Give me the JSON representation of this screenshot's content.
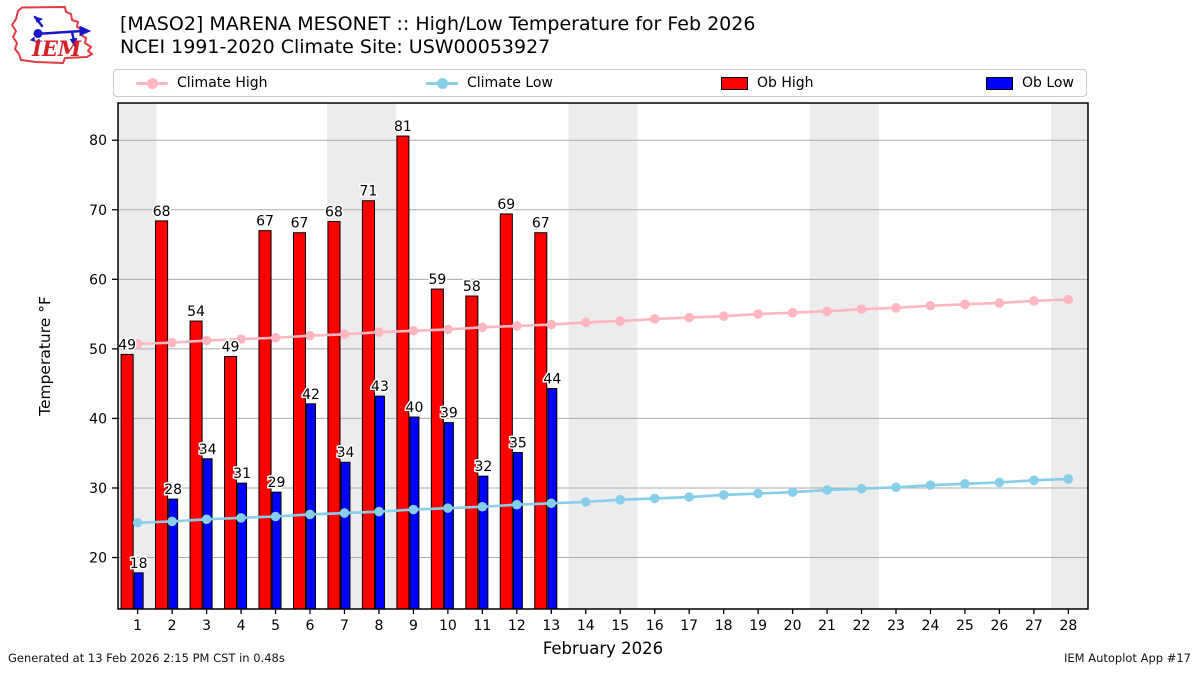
{
  "header": {
    "title_line1": "[MASO2] MARENA MESONET :: High/Low Temperature for Feb 2026",
    "title_line2": "NCEI 1991-2020 Climate Site: USW00053927",
    "logo_text": "IEM"
  },
  "footer": {
    "left": "Generated at 13 Feb 2026 2:15 PM CST in 0.48s",
    "right": "IEM Autoplot App #17"
  },
  "chart_data": {
    "type": "bar+line combo",
    "title": "[MASO2] MARENA MESONET :: High/Low Temperature for Feb 2026",
    "subtitle": "NCEI 1991-2020 Climate Site: USW00053927",
    "xlabel": "February 2026",
    "ylabel": "Temperature °F",
    "x": [
      1,
      2,
      3,
      4,
      5,
      6,
      7,
      8,
      9,
      10,
      11,
      12,
      13,
      14,
      15,
      16,
      17,
      18,
      19,
      20,
      21,
      22,
      23,
      24,
      25,
      26,
      27,
      28
    ],
    "xlim": [
      0.43,
      28.57
    ],
    "ylim": [
      12.6,
      85.35
    ],
    "yticks": [
      20,
      30,
      40,
      50,
      60,
      70,
      80
    ],
    "grid": true,
    "legend_position": "top",
    "weekend_bands": [
      [
        0.43,
        1.55
      ],
      [
        6.5,
        8.5
      ],
      [
        13.5,
        15.5
      ],
      [
        20.5,
        22.5
      ],
      [
        27.5,
        28.57
      ]
    ],
    "colors": {
      "climate_high": "#FFB6C1",
      "climate_low": "#87CEEB",
      "ob_high": "#FF0000",
      "ob_low": "#0000FF",
      "weekend_band": "#ECECEC",
      "gridline": "#ABABAB"
    },
    "series": [
      {
        "name": "Climate High",
        "type": "line",
        "swatch": "line",
        "color": "#FFB6C1",
        "values": [
          50.7,
          50.9,
          51.2,
          51.4,
          51.6,
          51.9,
          52.1,
          52.4,
          52.6,
          52.8,
          53.1,
          53.3,
          53.5,
          53.8,
          54.0,
          54.3,
          54.5,
          54.7,
          55.0,
          55.2,
          55.4,
          55.7,
          55.9,
          56.2,
          56.4,
          56.6,
          56.9,
          57.1
        ]
      },
      {
        "name": "Climate Low",
        "type": "line",
        "swatch": "line",
        "color": "#87CEEB",
        "values": [
          25.0,
          25.2,
          25.5,
          25.7,
          25.9,
          26.2,
          26.4,
          26.6,
          26.9,
          27.1,
          27.3,
          27.6,
          27.8,
          28.0,
          28.3,
          28.5,
          28.7,
          29.0,
          29.2,
          29.4,
          29.7,
          29.9,
          30.1,
          30.4,
          30.6,
          30.8,
          31.1,
          31.3
        ]
      },
      {
        "name": "Ob High",
        "type": "bar",
        "swatch": "patch",
        "color": "#FF0000",
        "days": [
          1,
          2,
          3,
          4,
          5,
          6,
          7,
          8,
          9,
          10,
          11,
          12,
          13
        ],
        "values": [
          49.2,
          68.4,
          54.0,
          48.9,
          67.0,
          66.7,
          68.3,
          71.3,
          80.6,
          58.6,
          57.6,
          69.4,
          66.7
        ],
        "labels": [
          "49",
          "68",
          "54",
          "49",
          "67",
          "67",
          "68",
          "71",
          "81",
          "59",
          "58",
          "69",
          "67"
        ]
      },
      {
        "name": "Ob Low",
        "type": "bar",
        "swatch": "patch",
        "color": "#0000FF",
        "days": [
          1,
          2,
          3,
          4,
          5,
          6,
          7,
          8,
          9,
          10,
          11,
          12,
          13
        ],
        "values": [
          17.8,
          28.4,
          34.2,
          30.7,
          29.4,
          42.1,
          33.7,
          43.2,
          40.2,
          39.4,
          31.7,
          35.1,
          44.3
        ],
        "labels": [
          "18",
          "28",
          "34",
          "31",
          "29",
          "42",
          "34",
          "43",
          "40",
          "39",
          "32",
          "35",
          "44"
        ]
      }
    ]
  }
}
